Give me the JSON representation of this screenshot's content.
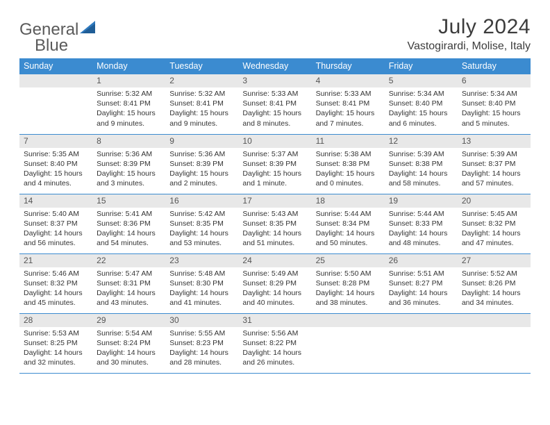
{
  "logo": {
    "text1": "General",
    "text2": "Blue"
  },
  "title": "July 2024",
  "location": "Vastogirardi, Molise, Italy",
  "colors": {
    "header_bg": "#3b8bd0",
    "header_text": "#ffffff",
    "daynum_bg": "#e8e8e8",
    "daynum_text": "#555555",
    "body_text": "#333333",
    "rule": "#3b8bd0",
    "logo_gray": "#5a5a5a",
    "logo_blue": "#2f79bd"
  },
  "weekdays": [
    "Sunday",
    "Monday",
    "Tuesday",
    "Wednesday",
    "Thursday",
    "Friday",
    "Saturday"
  ],
  "start_offset": 1,
  "days": [
    {
      "n": "1",
      "sunrise": "5:32 AM",
      "sunset": "8:41 PM",
      "daylight": "15 hours and 9 minutes."
    },
    {
      "n": "2",
      "sunrise": "5:32 AM",
      "sunset": "8:41 PM",
      "daylight": "15 hours and 9 minutes."
    },
    {
      "n": "3",
      "sunrise": "5:33 AM",
      "sunset": "8:41 PM",
      "daylight": "15 hours and 8 minutes."
    },
    {
      "n": "4",
      "sunrise": "5:33 AM",
      "sunset": "8:41 PM",
      "daylight": "15 hours and 7 minutes."
    },
    {
      "n": "5",
      "sunrise": "5:34 AM",
      "sunset": "8:40 PM",
      "daylight": "15 hours and 6 minutes."
    },
    {
      "n": "6",
      "sunrise": "5:34 AM",
      "sunset": "8:40 PM",
      "daylight": "15 hours and 5 minutes."
    },
    {
      "n": "7",
      "sunrise": "5:35 AM",
      "sunset": "8:40 PM",
      "daylight": "15 hours and 4 minutes."
    },
    {
      "n": "8",
      "sunrise": "5:36 AM",
      "sunset": "8:39 PM",
      "daylight": "15 hours and 3 minutes."
    },
    {
      "n": "9",
      "sunrise": "5:36 AM",
      "sunset": "8:39 PM",
      "daylight": "15 hours and 2 minutes."
    },
    {
      "n": "10",
      "sunrise": "5:37 AM",
      "sunset": "8:39 PM",
      "daylight": "15 hours and 1 minute."
    },
    {
      "n": "11",
      "sunrise": "5:38 AM",
      "sunset": "8:38 PM",
      "daylight": "15 hours and 0 minutes."
    },
    {
      "n": "12",
      "sunrise": "5:39 AM",
      "sunset": "8:38 PM",
      "daylight": "14 hours and 58 minutes."
    },
    {
      "n": "13",
      "sunrise": "5:39 AM",
      "sunset": "8:37 PM",
      "daylight": "14 hours and 57 minutes."
    },
    {
      "n": "14",
      "sunrise": "5:40 AM",
      "sunset": "8:37 PM",
      "daylight": "14 hours and 56 minutes."
    },
    {
      "n": "15",
      "sunrise": "5:41 AM",
      "sunset": "8:36 PM",
      "daylight": "14 hours and 54 minutes."
    },
    {
      "n": "16",
      "sunrise": "5:42 AM",
      "sunset": "8:35 PM",
      "daylight": "14 hours and 53 minutes."
    },
    {
      "n": "17",
      "sunrise": "5:43 AM",
      "sunset": "8:35 PM",
      "daylight": "14 hours and 51 minutes."
    },
    {
      "n": "18",
      "sunrise": "5:44 AM",
      "sunset": "8:34 PM",
      "daylight": "14 hours and 50 minutes."
    },
    {
      "n": "19",
      "sunrise": "5:44 AM",
      "sunset": "8:33 PM",
      "daylight": "14 hours and 48 minutes."
    },
    {
      "n": "20",
      "sunrise": "5:45 AM",
      "sunset": "8:32 PM",
      "daylight": "14 hours and 47 minutes."
    },
    {
      "n": "21",
      "sunrise": "5:46 AM",
      "sunset": "8:32 PM",
      "daylight": "14 hours and 45 minutes."
    },
    {
      "n": "22",
      "sunrise": "5:47 AM",
      "sunset": "8:31 PM",
      "daylight": "14 hours and 43 minutes."
    },
    {
      "n": "23",
      "sunrise": "5:48 AM",
      "sunset": "8:30 PM",
      "daylight": "14 hours and 41 minutes."
    },
    {
      "n": "24",
      "sunrise": "5:49 AM",
      "sunset": "8:29 PM",
      "daylight": "14 hours and 40 minutes."
    },
    {
      "n": "25",
      "sunrise": "5:50 AM",
      "sunset": "8:28 PM",
      "daylight": "14 hours and 38 minutes."
    },
    {
      "n": "26",
      "sunrise": "5:51 AM",
      "sunset": "8:27 PM",
      "daylight": "14 hours and 36 minutes."
    },
    {
      "n": "27",
      "sunrise": "5:52 AM",
      "sunset": "8:26 PM",
      "daylight": "14 hours and 34 minutes."
    },
    {
      "n": "28",
      "sunrise": "5:53 AM",
      "sunset": "8:25 PM",
      "daylight": "14 hours and 32 minutes."
    },
    {
      "n": "29",
      "sunrise": "5:54 AM",
      "sunset": "8:24 PM",
      "daylight": "14 hours and 30 minutes."
    },
    {
      "n": "30",
      "sunrise": "5:55 AM",
      "sunset": "8:23 PM",
      "daylight": "14 hours and 28 minutes."
    },
    {
      "n": "31",
      "sunrise": "5:56 AM",
      "sunset": "8:22 PM",
      "daylight": "14 hours and 26 minutes."
    }
  ],
  "labels": {
    "sunrise": "Sunrise:",
    "sunset": "Sunset:",
    "daylight": "Daylight:"
  }
}
